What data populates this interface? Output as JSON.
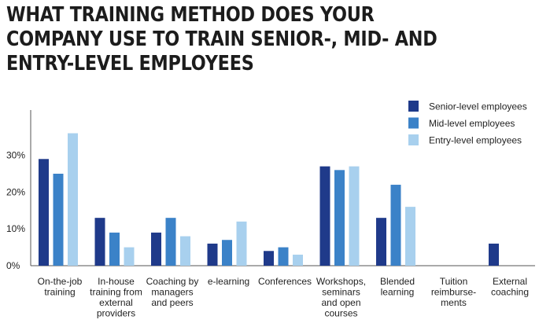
{
  "chart_data": {
    "type": "bar",
    "title": "WHAT TRAINING METHOD DOES YOUR COMPANY USE TO TRAIN SENIOR-, MID- AND ENTRY-LEVEL EMPLOYEES",
    "xlabel": "",
    "ylabel": "",
    "ylim": [
      0,
      40
    ],
    "y_ticks": [
      "0%",
      "10%",
      "20%",
      "30%"
    ],
    "y_tick_values": [
      0,
      10,
      20,
      30
    ],
    "grid": false,
    "legend_position": "top-right",
    "categories": [
      [
        "On-the-job",
        "training"
      ],
      [
        "In-house",
        "training from",
        "external",
        "providers"
      ],
      [
        "Coaching by",
        "managers",
        "and peers"
      ],
      [
        "e-learning"
      ],
      [
        "Conferences"
      ],
      [
        "Workshops,",
        "seminars",
        "and open",
        "courses"
      ],
      [
        "Blended",
        "learning"
      ],
      [
        "Tuition",
        "reimburse-",
        "ments"
      ],
      [
        "External",
        "coaching"
      ]
    ],
    "series": [
      {
        "name": "Senior-level employees",
        "color": "#1f3a8a",
        "values": [
          29,
          13,
          9,
          6,
          4,
          27,
          13,
          0,
          6
        ]
      },
      {
        "name": "Mid-level employees",
        "color": "#3b82c8",
        "values": [
          25,
          9,
          13,
          7,
          5,
          26,
          22,
          0,
          0
        ]
      },
      {
        "name": "Entry-level employees",
        "color": "#a8d0ee",
        "values": [
          36,
          5,
          8,
          12,
          3,
          27,
          16,
          0,
          0
        ]
      }
    ]
  }
}
